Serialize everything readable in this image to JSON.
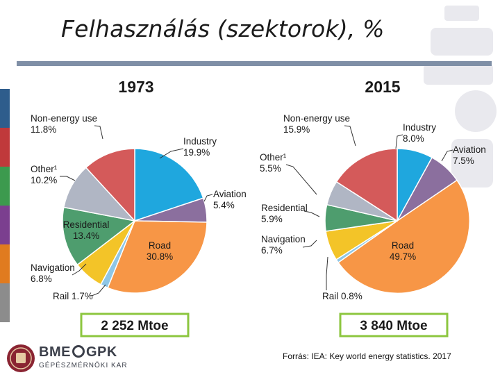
{
  "slide": {
    "title": "Felhasználás (szektorok), %",
    "source": "Forrás: IEA: Key world energy statistics. 2017"
  },
  "logo": {
    "main_left": "BME",
    "main_right": "GPK",
    "sub": "GÉPÉSZMÉRNÖKI KAR"
  },
  "colors": {
    "industry": "#1fa7de",
    "aviation": "#8b6f9e",
    "road": "#f79646",
    "rail": "#8ec6e6",
    "navigation": "#f3c428",
    "residential": "#4e9d6e",
    "other": "#b0b6c4",
    "non_energy": "#d45a5a",
    "total_box": "#8cc63f",
    "title_rule": "#7f8fa6"
  },
  "chart_data": [
    {
      "type": "pie",
      "title": "1973",
      "total": "2 252 Mtoe",
      "slices": [
        {
          "key": "industry",
          "label": "Industry",
          "value": 19.9,
          "text": "19.9%"
        },
        {
          "key": "aviation",
          "label": "Aviation",
          "value": 5.4,
          "text": "5.4%"
        },
        {
          "key": "road",
          "label": "Road",
          "value": 30.8,
          "text": "30.8%"
        },
        {
          "key": "rail",
          "label": "Rail",
          "value": 1.7,
          "text": "1.7%"
        },
        {
          "key": "navigation",
          "label": "Navigation",
          "value": 6.8,
          "text": "6.8%"
        },
        {
          "key": "residential",
          "label": "Residential",
          "value": 13.4,
          "text": "13.4%"
        },
        {
          "key": "other",
          "label": "Other¹",
          "value": 10.2,
          "text": "10.2%"
        },
        {
          "key": "non_energy",
          "label": "Non-energy use",
          "value": 11.8,
          "text": "11.8%"
        }
      ]
    },
    {
      "type": "pie",
      "title": "2015",
      "total": "3 840 Mtoe",
      "slices": [
        {
          "key": "industry",
          "label": "Industry",
          "value": 8.0,
          "text": "8.0%"
        },
        {
          "key": "aviation",
          "label": "Aviation",
          "value": 7.5,
          "text": "7.5%"
        },
        {
          "key": "road",
          "label": "Road",
          "value": 49.7,
          "text": "49.7%"
        },
        {
          "key": "rail",
          "label": "Rail",
          "value": 0.8,
          "text": "0.8%"
        },
        {
          "key": "navigation",
          "label": "Navigation",
          "value": 6.7,
          "text": "6.7%"
        },
        {
          "key": "residential",
          "label": "Residential",
          "value": 5.9,
          "text": "5.9%"
        },
        {
          "key": "other",
          "label": "Other¹",
          "value": 5.5,
          "text": "5.5%"
        },
        {
          "key": "non_energy",
          "label": "Non-energy use",
          "value": 15.9,
          "text": "15.9%"
        }
      ]
    }
  ]
}
